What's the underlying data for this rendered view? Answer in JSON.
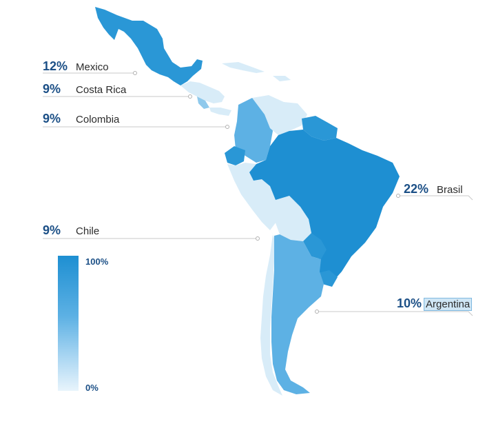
{
  "countries": [
    {
      "name": "Mexico",
      "pct": "12%",
      "share": 12
    },
    {
      "name": "Costa Rica",
      "pct": "9%",
      "share": 9
    },
    {
      "name": "Colombia",
      "pct": "9%",
      "share": 9
    },
    {
      "name": "Chile",
      "pct": "9%",
      "share": 9
    },
    {
      "name": "Brasil",
      "pct": "22%",
      "share": 22
    },
    {
      "name": "Argentina",
      "pct": "10%",
      "share": 10
    }
  ],
  "legend": {
    "max": "100%",
    "min": "0%"
  },
  "colors": {
    "darkest": "#1e8fd2",
    "dark": "#2a97d6",
    "medium": "#5db1e4",
    "light": "#8fc9ec",
    "lightest": "#d8ecf8",
    "label_pct": "#1b4f86",
    "leader_line": "#c8c8c8"
  }
}
